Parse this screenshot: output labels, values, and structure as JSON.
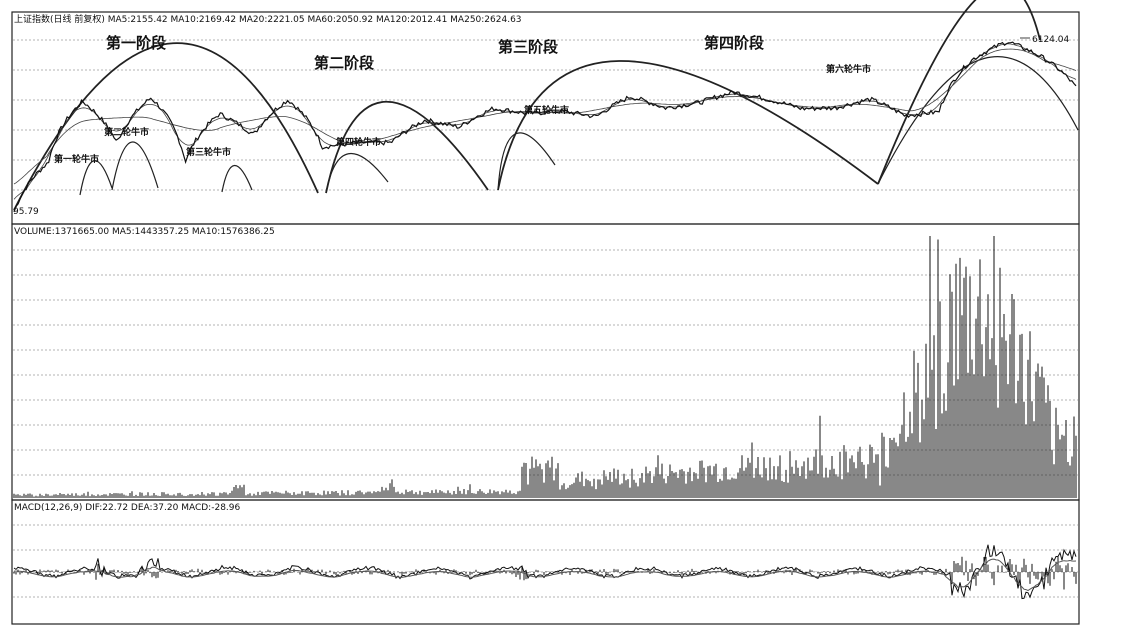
{
  "chart_data": [
    {
      "type": "line",
      "header": "上证指数(日线 前复权) MA5:2155.42 MA10:2169.42 MA20:2221.05 MA60:2050.92 MA120:2012.41 MA250:2624.63",
      "stage_labels": [
        "第一阶段",
        "第二阶段",
        "第三阶段",
        "第四阶段"
      ],
      "bull_labels": [
        "第一轮牛市",
        "第二轮牛市",
        "第三轮牛市",
        "第四轮牛市",
        "第五轮牛市",
        "第六轮牛市"
      ],
      "low_label": "95.79",
      "high_label": "6124.04",
      "series": [
        {
          "values": [
            96,
            320,
            1420,
            520,
            1550,
            330,
            1050,
            630,
            1480,
            470,
            520,
            520,
            900,
            760,
            1200,
            1060,
            1120,
            980,
            1600,
            1210,
            1380,
            1780,
            1500,
            1190,
            1220,
            1500,
            1010,
            1100,
            4000,
            6124,
            4200,
            2000
          ]
        }
      ]
    },
    {
      "type": "bar",
      "header": "VOLUME:1371665.00 MA5:1443357.25 MA10:1576386.25"
    },
    {
      "type": "line",
      "header": "MACD(12,26,9) DIF:22.72 DEA:37.20 MACD:-28.96"
    }
  ]
}
